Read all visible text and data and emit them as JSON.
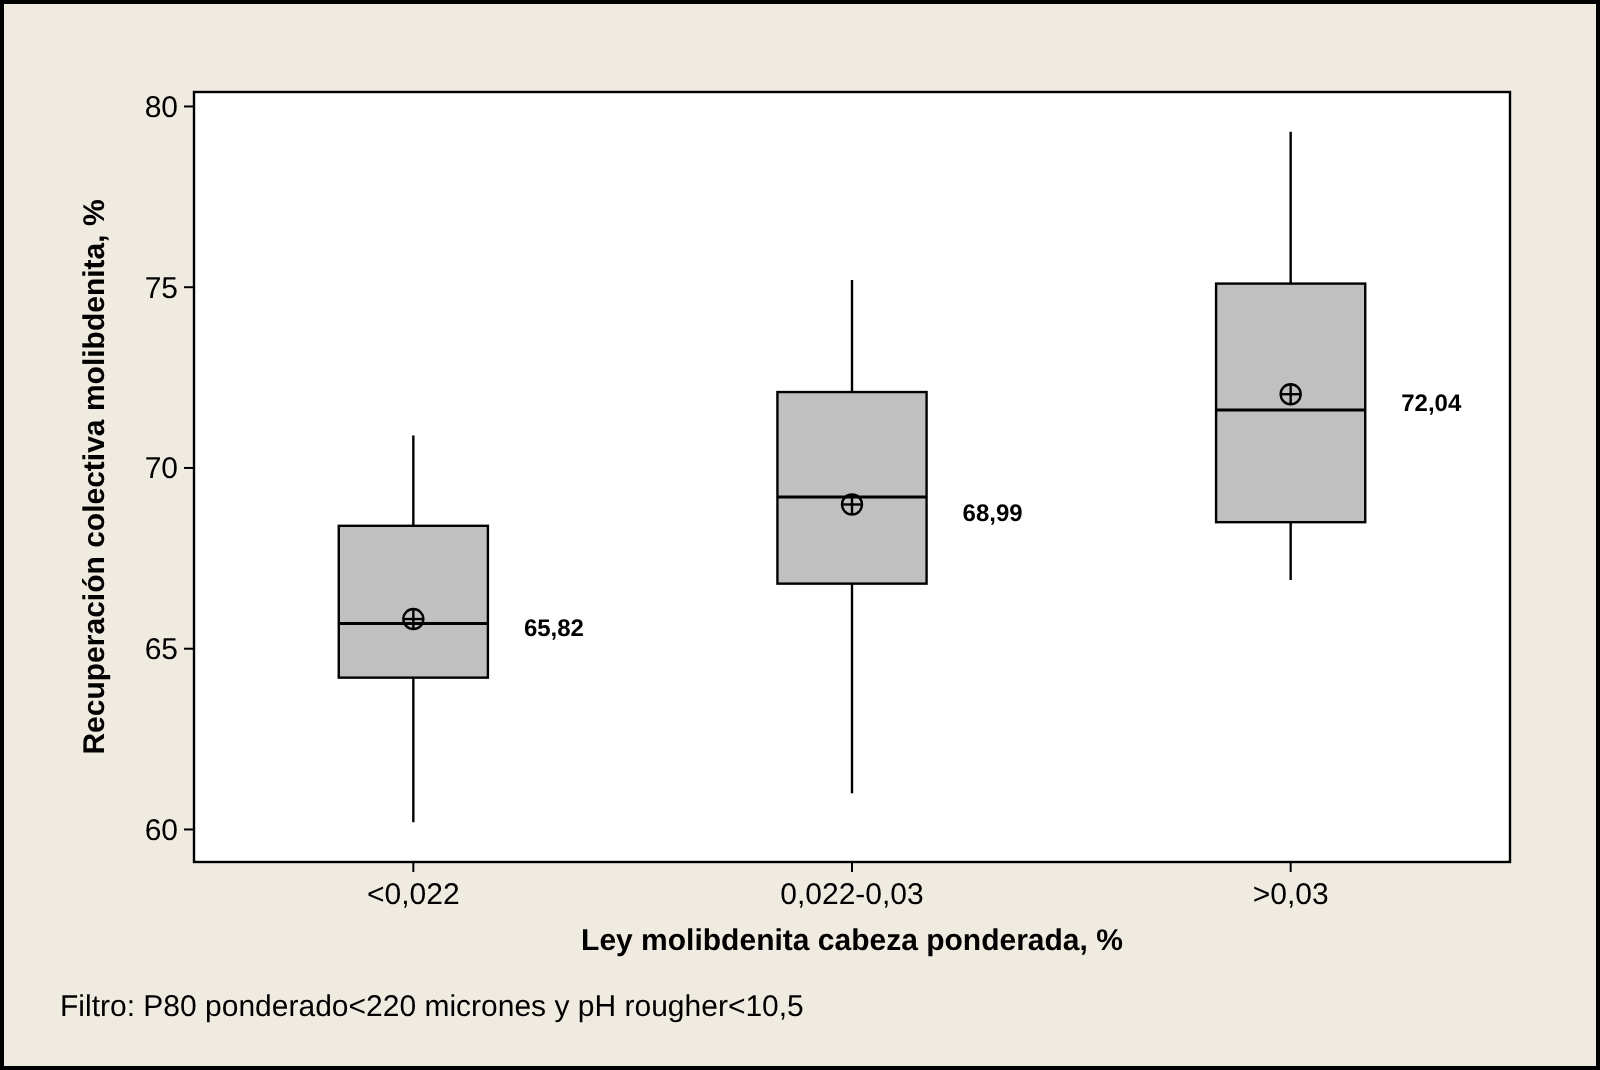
{
  "chart_data": {
    "type": "box",
    "xlabel": "Ley molibdenita cabeza ponderada, %",
    "ylabel": "Recuperación colectiva molibdenita, %",
    "categories": [
      "<0,022",
      "0,022-0,03",
      ">0,03"
    ],
    "color": "#c0c0c0",
    "boxes": [
      {
        "low": 60.2,
        "q1": 64.2,
        "median": 65.7,
        "q3": 68.4,
        "high": 70.9,
        "mean": 65.82
      },
      {
        "low": 61.0,
        "q1": 66.8,
        "median": 69.2,
        "q3": 72.1,
        "high": 75.2,
        "mean": 68.99
      },
      {
        "low": 66.9,
        "q1": 68.5,
        "median": 71.6,
        "q3": 75.1,
        "high": 79.3,
        "mean": 72.04
      }
    ],
    "ylim": [
      59.1,
      80.4
    ],
    "yticks": [
      60,
      65,
      70,
      75,
      80
    ],
    "grid": false,
    "annotations": [
      "65,82",
      "68,99",
      "72,04",
      "Filtro: P80 ponderado<220 micrones y pH rougher<10,5"
    ]
  }
}
